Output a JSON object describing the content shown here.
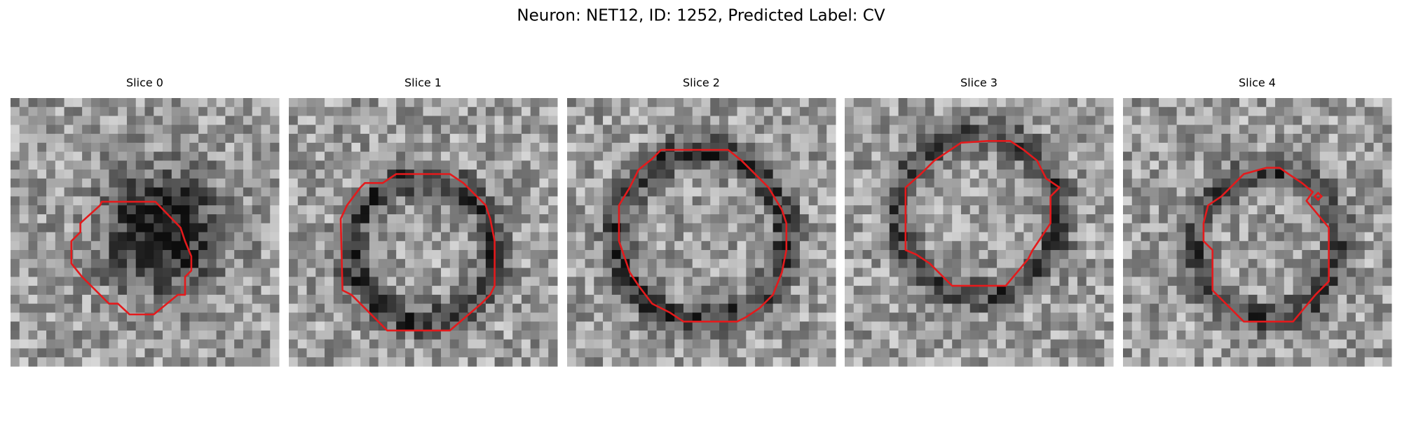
{
  "header": {
    "title": "Neuron: NET12, ID: 1252, Predicted Label: CV"
  },
  "panels": [
    {
      "title": "Slice 0"
    },
    {
      "title": "Slice 1"
    },
    {
      "title": "Slice 2"
    },
    {
      "title": "Slice 3"
    },
    {
      "title": "Slice 4"
    }
  ]
}
